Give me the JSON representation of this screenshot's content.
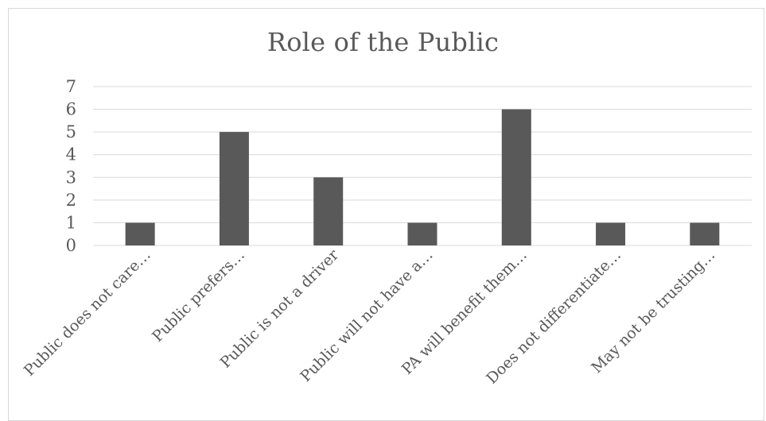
{
  "chart_data": {
    "type": "bar",
    "title": "Role of the Public",
    "xlabel": "",
    "ylabel": "",
    "categories": [
      "Public does not care…",
      "Public prefers…",
      "Public  is not a driver",
      "Public will not have a…",
      "PA will benefit them…",
      "Does not differentiate…",
      "May not be trusting…"
    ],
    "values": [
      1,
      5,
      3,
      1,
      6,
      1,
      1
    ],
    "ylim": [
      0,
      7
    ],
    "yticks": [
      0,
      1,
      2,
      3,
      4,
      5,
      6,
      7
    ],
    "grid": true,
    "legend": "none",
    "colors": {
      "bar": "#595959",
      "grid": "#d9d9d9",
      "text": "#595959"
    }
  }
}
